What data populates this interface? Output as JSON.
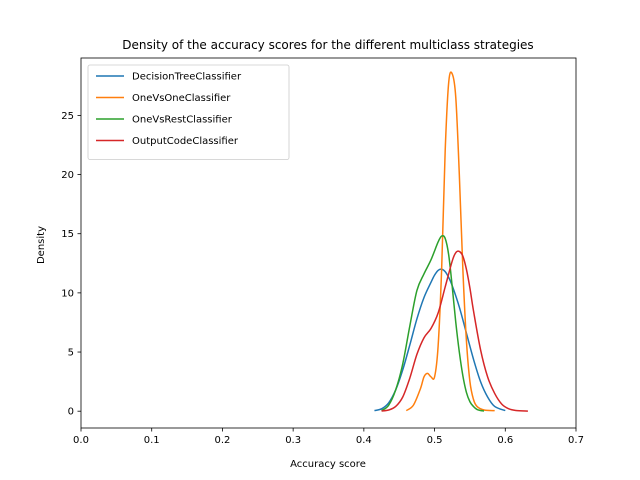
{
  "chart_data": {
    "type": "line",
    "title": "Density of the accuracy scores for the different multiclass strategies",
    "xlabel": "Accuracy score",
    "ylabel": "Density",
    "xlim": [
      0.0,
      0.7
    ],
    "ylim": [
      -1.42,
      29.85
    ],
    "xticks": [
      0.0,
      0.1,
      0.2,
      0.3,
      0.4,
      0.5,
      0.6,
      0.7
    ],
    "xtick_labels": [
      "0.0",
      "0.1",
      "0.2",
      "0.3",
      "0.4",
      "0.5",
      "0.6",
      "0.7"
    ],
    "yticks": [
      0,
      5,
      10,
      15,
      20,
      25
    ],
    "ytick_labels": [
      "0",
      "5",
      "10",
      "15",
      "20",
      "25"
    ],
    "grid": false,
    "legend_position": "top-left",
    "series": [
      {
        "name": "DecisionTreeClassifier",
        "color": "#1f77b4",
        "x": [
          0.415,
          0.425,
          0.435,
          0.445,
          0.455,
          0.465,
          0.475,
          0.485,
          0.495,
          0.5,
          0.505,
          0.51,
          0.515,
          0.52,
          0.525,
          0.535,
          0.545,
          0.555,
          0.565,
          0.575,
          0.585,
          0.6
        ],
        "y": [
          0.05,
          0.2,
          0.7,
          1.8,
          3.5,
          5.6,
          7.8,
          9.6,
          10.9,
          11.5,
          11.9,
          12.0,
          11.8,
          11.3,
          10.6,
          8.8,
          6.6,
          4.4,
          2.5,
          1.2,
          0.4,
          0.05
        ]
      },
      {
        "name": "OneVsOneClassifier",
        "color": "#ff7f0e",
        "x": [
          0.46,
          0.47,
          0.48,
          0.485,
          0.49,
          0.495,
          0.5,
          0.505,
          0.51,
          0.515,
          0.52,
          0.525,
          0.53,
          0.535,
          0.54,
          0.545,
          0.55,
          0.555,
          0.56,
          0.57,
          0.585
        ],
        "y": [
          0.05,
          0.5,
          1.9,
          2.9,
          3.2,
          2.9,
          2.9,
          5.5,
          12.0,
          22.0,
          27.8,
          28.5,
          26.5,
          20.0,
          12.0,
          6.0,
          2.5,
          1.0,
          0.4,
          0.1,
          0.05
        ]
      },
      {
        "name": "OneVsRestClassifier",
        "color": "#2ca02c",
        "x": [
          0.425,
          0.435,
          0.445,
          0.455,
          0.465,
          0.475,
          0.485,
          0.495,
          0.505,
          0.51,
          0.515,
          0.52,
          0.525,
          0.53,
          0.535,
          0.54,
          0.545,
          0.55,
          0.555,
          0.56,
          0.565,
          0.57
        ],
        "y": [
          0.05,
          0.5,
          1.8,
          4.0,
          7.2,
          10.2,
          11.6,
          12.8,
          14.3,
          14.8,
          14.6,
          13.2,
          10.5,
          7.5,
          5.0,
          3.0,
          1.6,
          0.8,
          0.4,
          0.15,
          0.06,
          0.02
        ]
      },
      {
        "name": "OutputCodeClassifier",
        "color": "#d62728",
        "x": [
          0.425,
          0.435,
          0.445,
          0.455,
          0.465,
          0.475,
          0.485,
          0.495,
          0.505,
          0.515,
          0.525,
          0.53,
          0.535,
          0.54,
          0.545,
          0.55,
          0.555,
          0.565,
          0.575,
          0.585,
          0.595,
          0.605,
          0.615,
          0.632
        ],
        "y": [
          0.02,
          0.1,
          0.4,
          1.2,
          2.8,
          4.8,
          6.2,
          7.0,
          8.3,
          10.5,
          12.7,
          13.4,
          13.5,
          13.1,
          12.0,
          10.4,
          8.5,
          5.2,
          2.9,
          1.5,
          0.6,
          0.2,
          0.06,
          0.01
        ]
      }
    ]
  }
}
